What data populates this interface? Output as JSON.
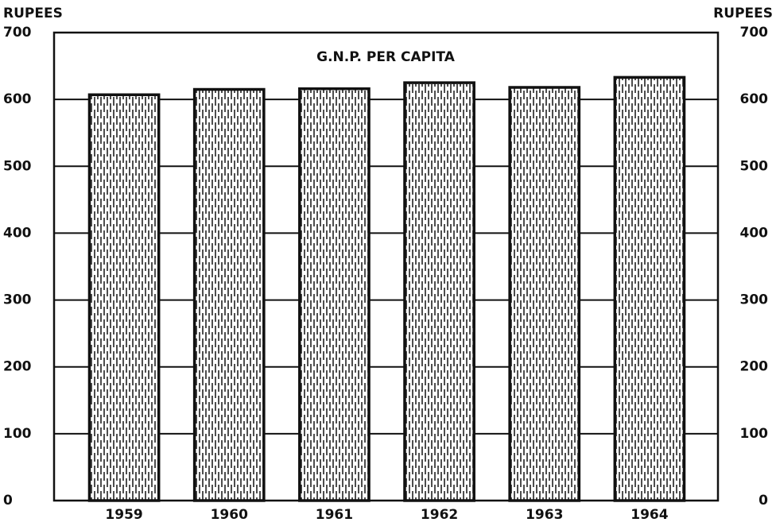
{
  "chart_data": {
    "type": "bar",
    "title": "G.N.P. PER CAPITA",
    "ylabel": "RUPEES",
    "y2label": "RUPEES",
    "categories": [
      "1959",
      "1960",
      "1961",
      "1962",
      "1963",
      "1964"
    ],
    "values": [
      607,
      615,
      616,
      625,
      618,
      633
    ],
    "color": "#111111",
    "ylim": [
      0,
      700
    ],
    "yticks": [
      0,
      100,
      200,
      300,
      400,
      500,
      600,
      700
    ],
    "y2lim": [
      0,
      700
    ],
    "y2ticks": [
      0,
      100,
      200,
      300,
      400,
      500,
      600,
      700
    ],
    "grid": true
  }
}
